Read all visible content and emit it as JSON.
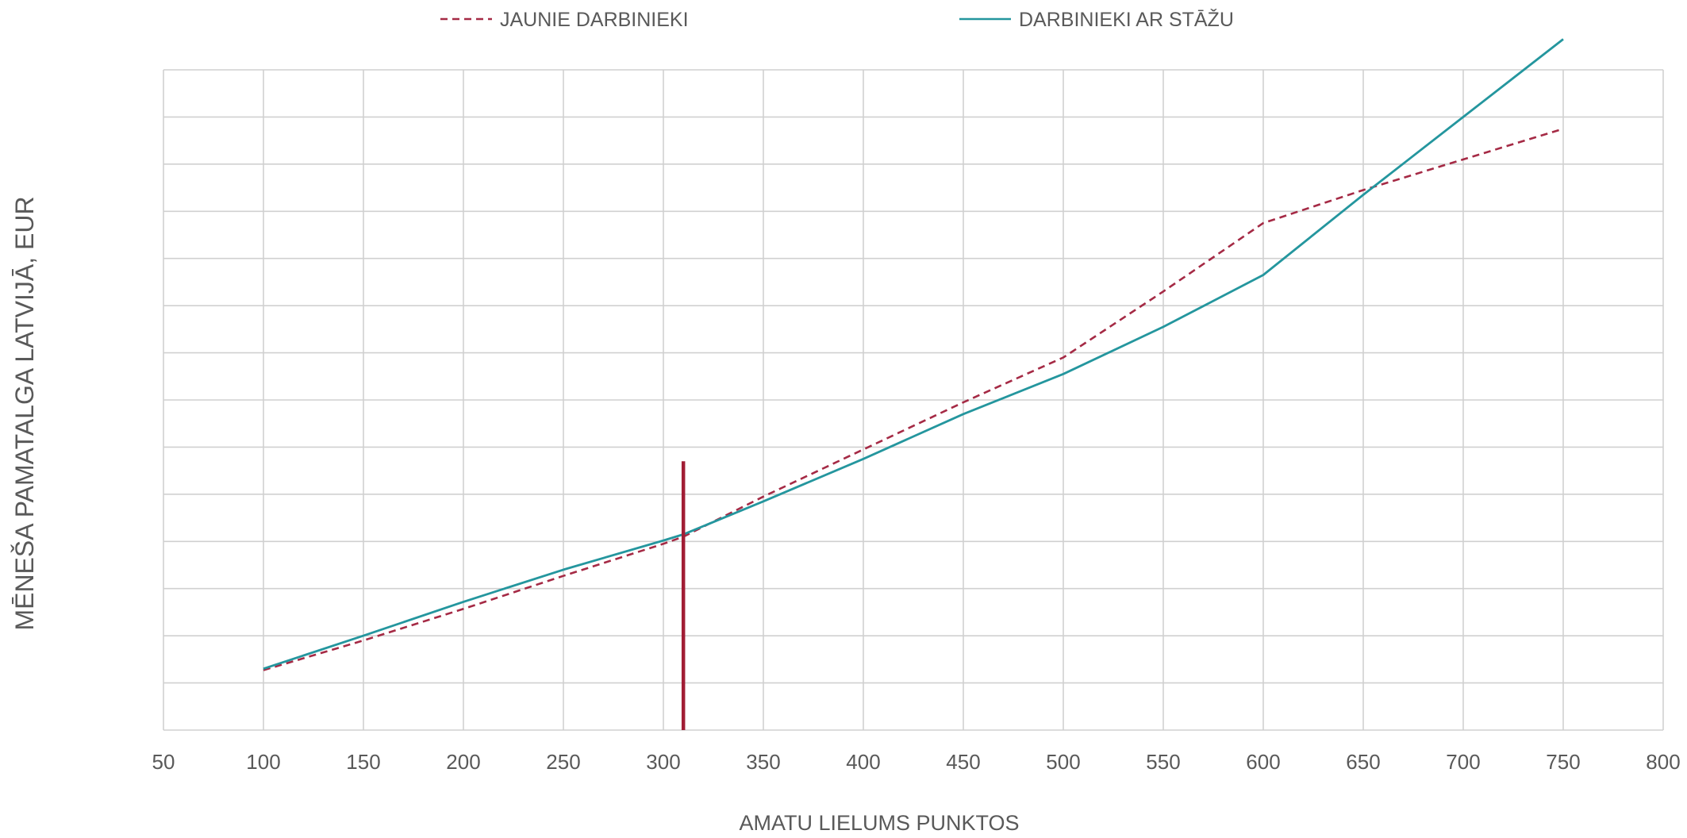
{
  "chart_data": {
    "type": "line",
    "title": "",
    "xlabel": "AMATU LIELUMS PUNKTOS",
    "ylabel": "MĒNEŠA PAMATALGA LATVIJĀ, EUR",
    "xlim": [
      50,
      800
    ],
    "x_ticks": [
      50,
      100,
      150,
      200,
      250,
      300,
      350,
      400,
      450,
      500,
      550,
      600,
      650,
      700,
      750,
      800
    ],
    "y_tick_labels_shown": false,
    "y_gridlines": 14,
    "grid": true,
    "legend_position": "top",
    "series": [
      {
        "name": "JAUNIE DARBINIEKI",
        "style": "dashed",
        "color": "#a52a45",
        "x": [
          100,
          150,
          200,
          250,
          300,
          310,
          350,
          400,
          450,
          500,
          550,
          600,
          650,
          700,
          750
        ],
        "y": [
          1.27,
          1.9,
          2.57,
          3.27,
          3.95,
          4.1,
          4.95,
          5.95,
          6.95,
          7.9,
          9.3,
          10.75,
          11.45,
          12.1,
          12.75
        ]
      },
      {
        "name": "DARBINIEKI AR STĀŽU",
        "style": "solid",
        "color": "#24969e",
        "x": [
          100,
          150,
          200,
          250,
          300,
          310,
          350,
          400,
          450,
          500,
          550,
          600,
          650,
          700,
          750
        ],
        "y": [
          1.3,
          2.0,
          2.72,
          3.4,
          4.02,
          4.15,
          4.85,
          5.75,
          6.7,
          7.55,
          8.55,
          9.65,
          11.35,
          13.0,
          14.65
        ]
      }
    ],
    "reference_line": {
      "x": 310,
      "y_from": 0,
      "y_to": 5.7,
      "color": "#a11d35"
    }
  }
}
